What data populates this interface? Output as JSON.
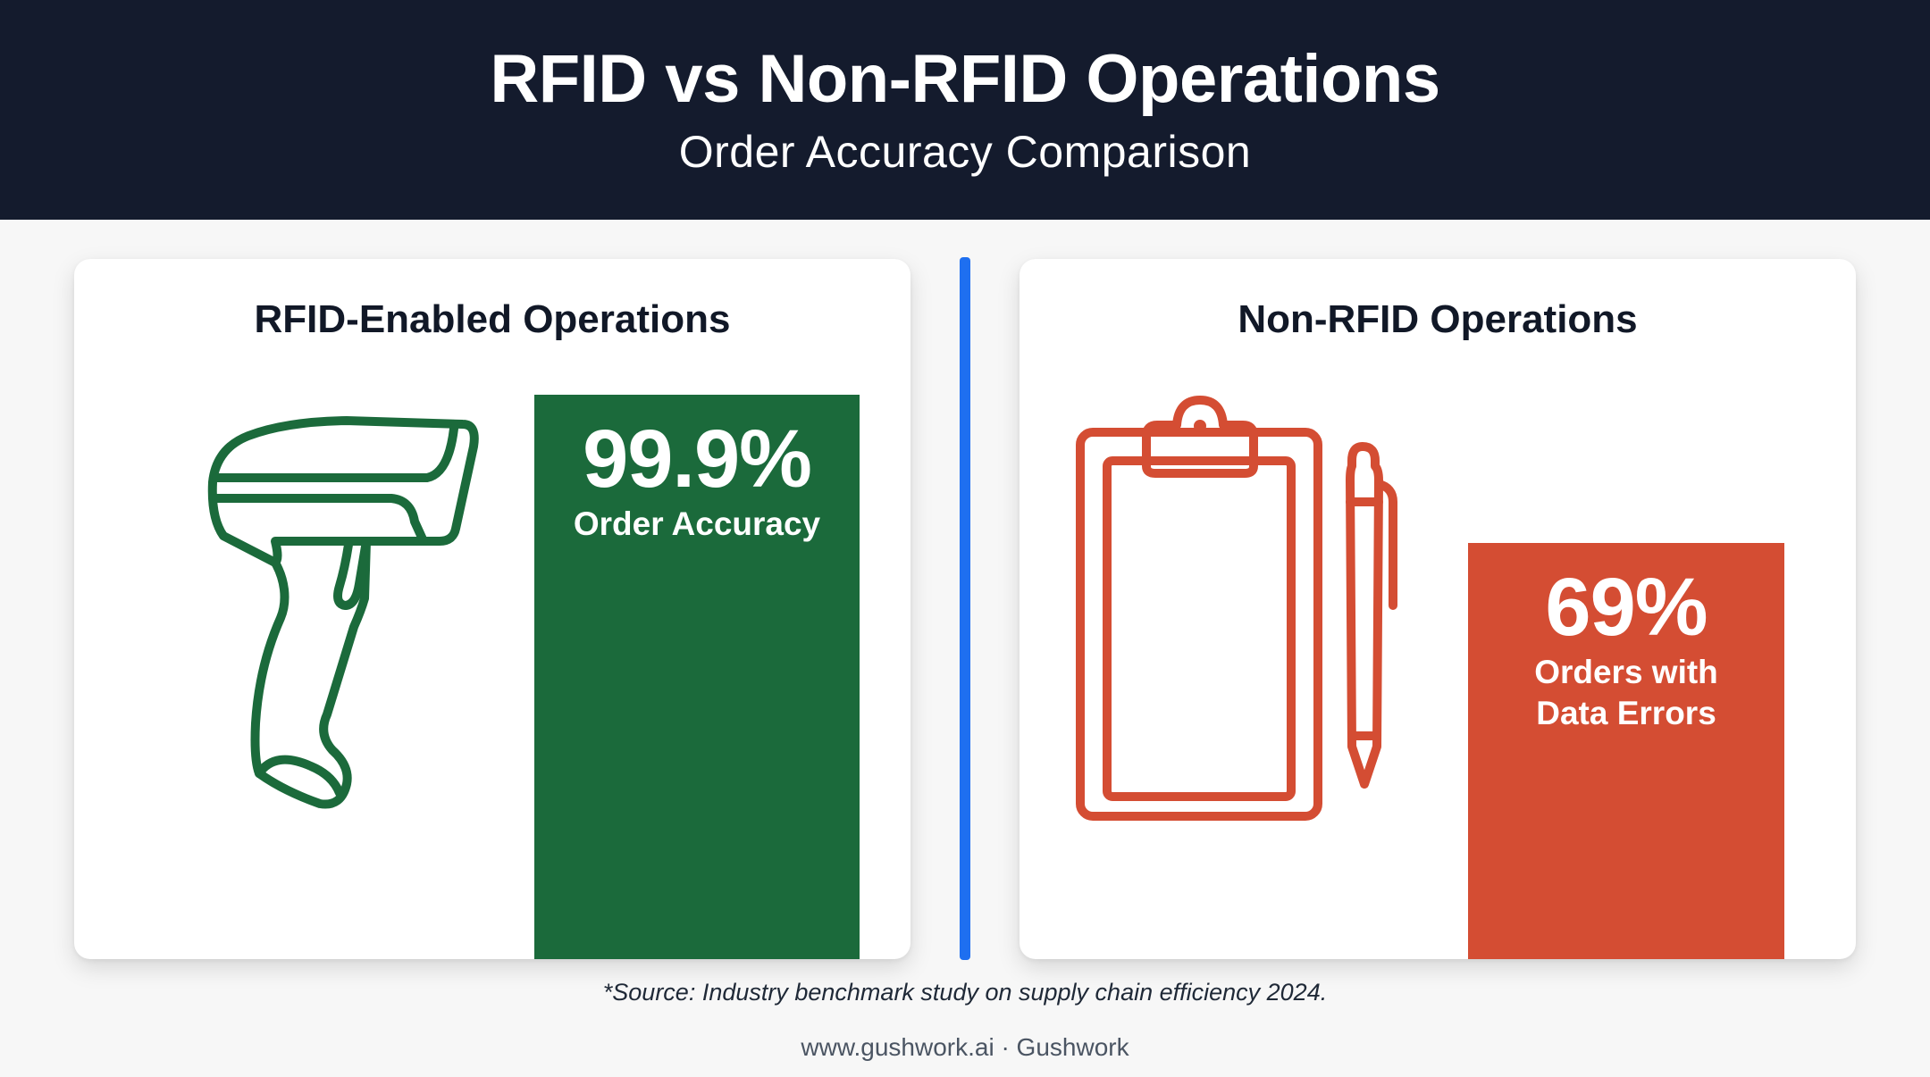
{
  "header": {
    "title": "RFID vs Non-RFID Operations",
    "subtitle": "Order Accuracy Comparison"
  },
  "left_card": {
    "title": "RFID-Enabled Operations",
    "icon": "barcode-scanner-icon",
    "stat_value": "99.9%",
    "stat_label": "Order Accuracy",
    "accent_color": "#1b6a3b"
  },
  "right_card": {
    "title": "Non-RFID Operations",
    "icon": "clipboard-pen-icon",
    "stat_value": "69%",
    "stat_label_line1": "Orders with",
    "stat_label_line2": "Data Errors",
    "accent_color": "#d44d33"
  },
  "divider_color": "#1e6ff0",
  "source": "*Source: Industry benchmark study on supply chain efficiency 2024.",
  "footer": "www.gushwork.ai · Gushwork"
}
